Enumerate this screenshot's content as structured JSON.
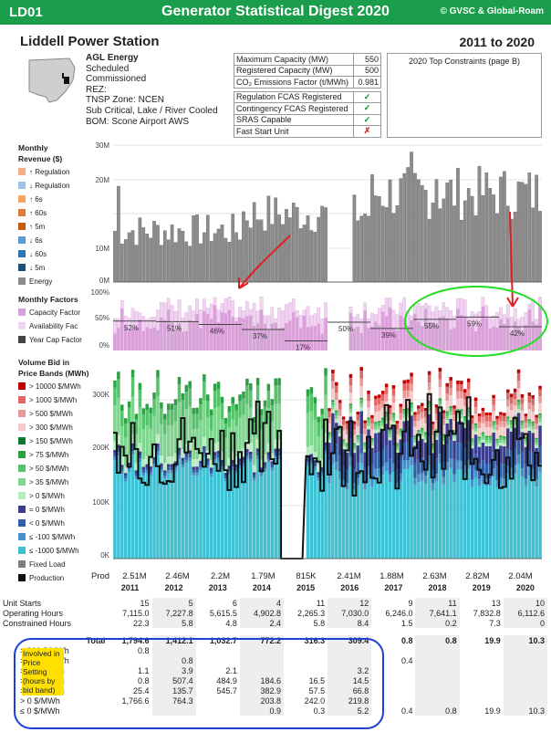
{
  "header": {
    "code": "LD01",
    "title": "Generator Statistical Digest 2020",
    "copyright": "© GVSC & Global-Roam"
  },
  "station": {
    "name": "Liddell Power Station",
    "years": "2011 to 2020"
  },
  "info": {
    "owner": "AGL Energy",
    "line1": "Scheduled",
    "line2": "Commissioned",
    "rez": "REZ:",
    "tnsp": "TNSP Zone: NCEN",
    "tech": "Sub Critical, Lake / River Cooled",
    "bom": "BOM: Scone Airport AWS"
  },
  "capacity": [
    {
      "label": "Maximum Capacity (MW)",
      "value": "550"
    },
    {
      "label": "Registered Capacity (MW)",
      "value": "500"
    },
    {
      "label": "CO₂ Emissions Factor (t/MWh)",
      "value": "0.981"
    }
  ],
  "registrations": [
    {
      "label": "Regulation FCAS Registered",
      "mark": "✓",
      "ok": true
    },
    {
      "label": "Contingency FCAS Registered",
      "mark": "✓",
      "ok": true
    },
    {
      "label": "SRAS Capable",
      "mark": "✓",
      "ok": true
    },
    {
      "label": "Fast Start Unit",
      "mark": "✗",
      "ok": false
    }
  ],
  "constraints_title": "2020 Top Constraints (page B)",
  "revenue_legend": {
    "title1": "Monthly",
    "title2": "Revenue ($)",
    "items": [
      {
        "label": "Regulation",
        "arrow": "↑",
        "color": "#f4b183"
      },
      {
        "label": "Regulation",
        "arrow": "↓",
        "color": "#9dc3e6"
      },
      {
        "label": "6s",
        "arrow": "↑",
        "color": "#f4a460"
      },
      {
        "label": "60s",
        "arrow": "↑",
        "color": "#e07a3a"
      },
      {
        "label": "5m",
        "arrow": "↑",
        "color": "#c55a11"
      },
      {
        "label": "6s",
        "arrow": "↓",
        "color": "#5b9bd5"
      },
      {
        "label": "60s",
        "arrow": "↓",
        "color": "#2e75b6"
      },
      {
        "label": "5m",
        "arrow": "↓",
        "color": "#1f4e79"
      },
      {
        "label": "Energy",
        "arrow": "",
        "color": "#8c8c8c"
      }
    ]
  },
  "revenue_ticks": [
    "30M",
    "20M",
    "10M",
    "0M"
  ],
  "factors_legend": {
    "title": "Monthly Factors",
    "items": [
      {
        "label": "Capacity Factor",
        "color": "#d9a0d9"
      },
      {
        "label": "Availability Fac",
        "color": "#f3d3f3"
      },
      {
        "label": "Year Cap Factor",
        "color": "#444444"
      }
    ]
  },
  "factor_ticks": [
    "100%",
    "50%",
    "0%"
  ],
  "factor_year_labels": [
    "52%",
    "51%",
    "46%",
    "37%",
    "17%",
    "50%",
    "39%",
    "55%",
    "59%",
    "42%"
  ],
  "bands_legend": {
    "title1": "Volume Bid in",
    "title2": "Price Bands (MWh)",
    "items": [
      {
        "label": "> 10000 $/MWh",
        "color": "#c00000"
      },
      {
        "label": "> 1000 $/MWh",
        "color": "#e06666"
      },
      {
        "label": "> 500 $/MWh",
        "color": "#ea9999"
      },
      {
        "label": "> 300 $/MWh",
        "color": "#f4cccc"
      },
      {
        "label": "> 150 $/MWh",
        "color": "#0b7a2f"
      },
      {
        "label": "> 75 $/MWh",
        "color": "#2ea043"
      },
      {
        "label": "> 50 $/MWh",
        "color": "#56c26b"
      },
      {
        "label": "> 35 $/MWh",
        "color": "#7fd48f"
      },
      {
        "label": "> 0 $/MWh",
        "color": "#b7ecc0"
      },
      {
        "label": "= 0 $/MWh",
        "color": "#3c3c8c"
      },
      {
        "label": "< 0 $/MWh",
        "color": "#2e5fa8"
      },
      {
        "label": "≤ -100 $/MWh",
        "color": "#4a90c8"
      },
      {
        "label": "≤ -1000 $/MWh",
        "color": "#3ec1d3"
      },
      {
        "label": "Fixed Load",
        "color": "#7f7f7f"
      },
      {
        "label": "Production",
        "color": "#111111"
      }
    ]
  },
  "band_ticks": [
    "300K",
    "200K",
    "100K",
    "0K"
  ],
  "prod": {
    "label": "Prod",
    "values": [
      "2.51M",
      "2.46M",
      "2.2M",
      "1.79M",
      "815K",
      "2.41M",
      "1.88M",
      "2.63M",
      "2.82M",
      "2.04M"
    ]
  },
  "years": [
    "2011",
    "2012",
    "2013",
    "2014",
    "2015",
    "2016",
    "2017",
    "2018",
    "2019",
    "2020"
  ],
  "table": {
    "rows": [
      {
        "label": "Unit Starts",
        "values": [
          "15",
          "5",
          "6",
          "4",
          "11",
          "12",
          "9",
          "11",
          "13",
          "10"
        ]
      },
      {
        "label": "Operating Hours",
        "values": [
          "7,115.0",
          "7,227.8",
          "5,615.5",
          "4,902.8",
          "2,265.3",
          "7,030.0",
          "6,246.0",
          "7,641.1",
          "7,832.8",
          "6,112.6"
        ]
      },
      {
        "label": "Constrained Hours",
        "values": [
          "22.3",
          "5.8",
          "4.8",
          "2.4",
          "5.8",
          "8.4",
          "1.5",
          "0.2",
          "7.3",
          "0"
        ]
      }
    ],
    "total": {
      "label": "Total",
      "values": [
        "1,794.6",
        "1,412.1",
        "1,032.7",
        "772.2",
        "316.3",
        "309.4",
        "0.8",
        "0.8",
        "19.9",
        "10.3"
      ]
    },
    "side_label": "Involved in Price Setting (hours by bid band)",
    "bands": [
      {
        "label": "> 300 $/MWh",
        "values": [
          "0.8",
          "",
          "",
          "",
          "",
          "",
          "",
          "",
          "",
          ""
        ]
      },
      {
        "label": "> 150 $/MWh",
        "values": [
          "",
          "0.8",
          "",
          "",
          "",
          "",
          "0.4",
          "",
          "",
          ""
        ]
      },
      {
        "label": "> 75 $/MWh",
        "values": [
          "1.1",
          "3.9",
          "2.1",
          "",
          "",
          "3.2",
          "",
          "",
          "",
          ""
        ]
      },
      {
        "label": "> 50 $/MWh",
        "values": [
          "0.8",
          "507.4",
          "484.9",
          "184.6",
          "16.5",
          "14.5",
          "",
          "",
          "",
          ""
        ]
      },
      {
        "label": "> 35 $/MWh",
        "values": [
          "25.4",
          "135.7",
          "545.7",
          "382.9",
          "57.5",
          "66.8",
          "",
          "",
          "",
          ""
        ]
      },
      {
        "label": "> 0 $/MWh",
        "values": [
          "1,766.6",
          "764.3",
          "",
          "203.8",
          "242.0",
          "219.8",
          "",
          "",
          "",
          ""
        ]
      },
      {
        "label": "≤ 0 $/MWh",
        "values": [
          "",
          "",
          "",
          "0.9",
          "0.3",
          "5.2",
          "0.4",
          "0.8",
          "19.9",
          "10.3"
        ]
      }
    ]
  }
}
